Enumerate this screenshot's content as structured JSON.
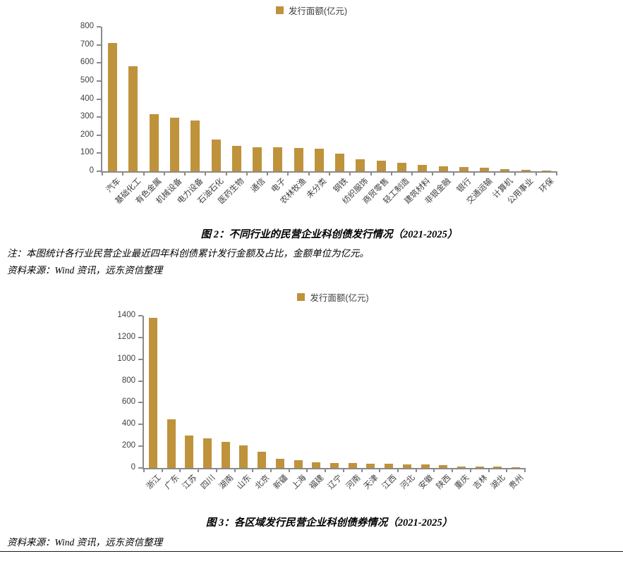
{
  "page": {
    "note": "注：本图统计各行业民营企业最近四年科创债累计发行金额及占比，金额单位为亿元。",
    "source1": "资料来源：Wind 资讯，远东资信整理",
    "source2": "资料来源：Wind 资讯，远东资信整理"
  },
  "colors": {
    "bar": "#bf923c",
    "axis": "#8a8a8a",
    "tick_text": "#3f3f3f"
  },
  "chart_data": [
    {
      "type": "bar",
      "title": "图 2：不同行业的民营企业科创债发行情况（2021-2025）",
      "legend": "发行面额(亿元)",
      "legend_position": "top-center",
      "xlabel": "",
      "ylabel": "",
      "grid": false,
      "ylim": [
        0,
        800
      ],
      "ytick_step": 100,
      "categories": [
        "汽车",
        "基础化工",
        "有色金属",
        "机械设备",
        "电力设备",
        "石油石化",
        "医药生物",
        "通信",
        "电子",
        "农林牧渔",
        "未分类",
        "钢铁",
        "纺织服饰",
        "商贸零售",
        "轻工制造",
        "建筑材料",
        "非银金融",
        "银行",
        "交通运输",
        "计算机",
        "公用事业",
        "环保"
      ],
      "values": [
        710,
        580,
        318,
        297,
        281,
        175,
        140,
        133,
        132,
        129,
        124,
        99,
        67,
        58,
        48,
        34,
        28,
        24,
        19,
        12,
        6,
        2
      ]
    },
    {
      "type": "bar",
      "title": "图 3：各区域发行民营企业科创债券情况（2021-2025）",
      "legend": "发行面额(亿元)",
      "legend_position": "top-center",
      "xlabel": "",
      "ylabel": "",
      "grid": false,
      "ylim": [
        0,
        1400
      ],
      "ytick_step": 200,
      "categories": [
        "浙江",
        "广东",
        "江苏",
        "四川",
        "湖南",
        "山东",
        "北京",
        "新疆",
        "上海",
        "福建",
        "辽宁",
        "河南",
        "天津",
        "江西",
        "河北",
        "安徽",
        "陕西",
        "重庆",
        "吉林",
        "湖北",
        "贵州"
      ],
      "values": [
        1380,
        445,
        295,
        271,
        240,
        206,
        147,
        85,
        70,
        52,
        46,
        45,
        42,
        38,
        33,
        30,
        28,
        13,
        12,
        11,
        4
      ]
    }
  ]
}
